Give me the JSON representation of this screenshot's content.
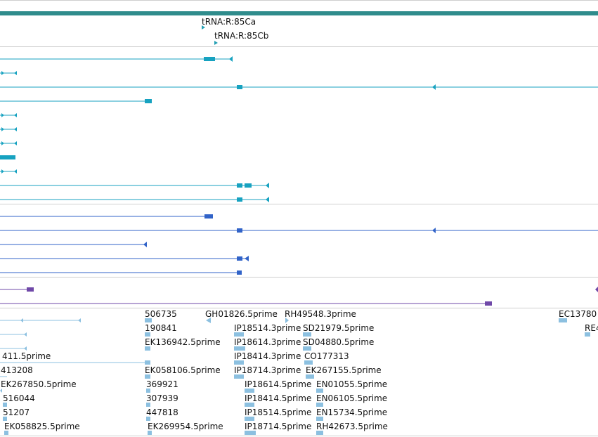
{
  "colors": {
    "gene_span": "#26a0b4",
    "transcript_a": "#17a2c0",
    "transcript_b": "#3163c8",
    "transcript_c": "#6f48a8",
    "est": "#8cc0e0",
    "scale_bar": "#2f8c8c",
    "divider": "#cfcfcf"
  },
  "trna_track": {
    "labels": [
      "tRNA:R:85Ca",
      "tRNA:R:85Cb"
    ]
  },
  "est_track": {
    "labels": [
      "506735",
      "GH01826.5prime",
      "RH49548.3prime",
      "EC13780",
      "190841",
      "IP18514.3prime",
      "SD21979.5prime",
      "RE4",
      "EK136942.5prime",
      "IP18614.3prime",
      "SD04880.5prime",
      "411.5prime",
      "IP18414.3prime",
      "CO177313",
      "413208",
      "EK058106.5prime",
      "IP18714.3prime",
      "EK267155.5prime",
      "EK267850.5prime",
      "369921",
      "IP18614.5prime",
      "EN01055.5prime",
      "516044",
      "307939",
      "IP18414.5prime",
      "EN06105.5prime",
      "51207",
      "447818",
      "IP18514.5prime",
      "EN15734.5prime",
      "EK058825.5prime",
      "EK269954.5prime",
      "IP18714.5prime",
      "RH42673.5prime"
    ]
  }
}
